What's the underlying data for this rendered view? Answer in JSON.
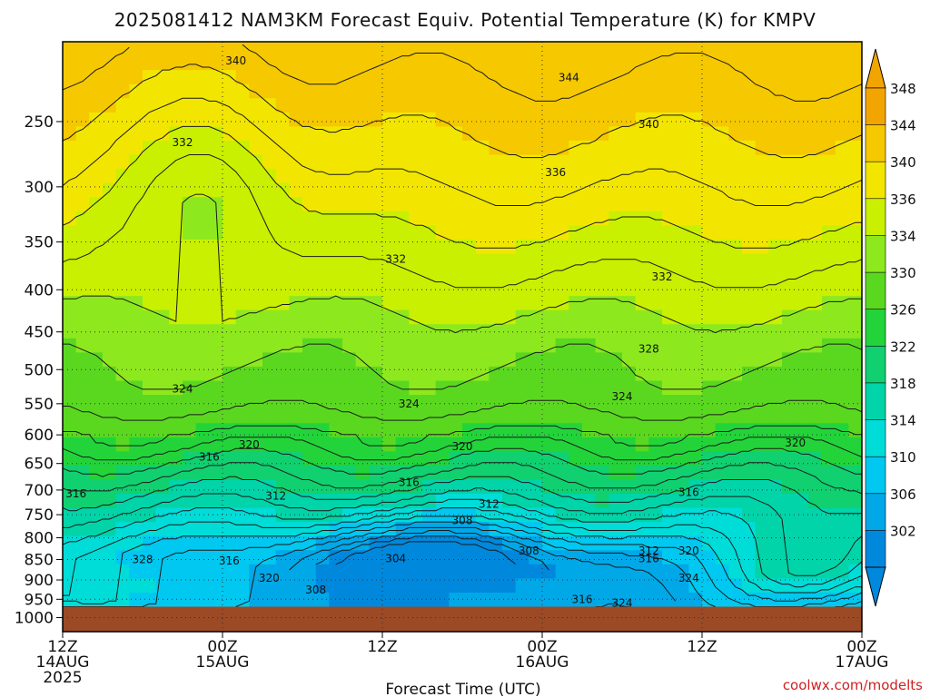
{
  "title": "2025081412 NAM3KM Forecast Equiv. Potential Temperature (K) for KMPV",
  "credit": "coolwx.com/modelts",
  "chart_data": {
    "type": "heatmap",
    "title": "2025081412 NAM3KM Forecast Equiv. Potential Temperature (K) for KMPV",
    "xlabel": "Forecast Time (UTC)",
    "ylabel": "",
    "x_unit": "forecast hour",
    "xlim": [
      0,
      60
    ],
    "x_ticks": [
      {
        "h": 0,
        "lines": [
          "12Z",
          "14AUG",
          "2025"
        ]
      },
      {
        "h": 12,
        "lines": [
          "00Z",
          "15AUG"
        ]
      },
      {
        "h": 24,
        "lines": [
          "12Z"
        ]
      },
      {
        "h": 36,
        "lines": [
          "00Z",
          "16AUG"
        ]
      },
      {
        "h": 48,
        "lines": [
          "12Z"
        ]
      },
      {
        "h": 60,
        "lines": [
          "00Z",
          "17AUG"
        ]
      }
    ],
    "y_unit": "pressure (hPa)",
    "y_scale": "log",
    "ylim": [
      1040,
      200
    ],
    "y_ticks": [
      1000,
      950,
      900,
      850,
      800,
      750,
      700,
      650,
      600,
      550,
      500,
      450,
      400,
      350,
      300,
      250
    ],
    "grid": true,
    "ground_below_hPa": 970,
    "colorbar": {
      "levels": [
        348,
        344,
        340,
        336,
        334,
        330,
        326,
        322,
        318,
        314,
        310,
        306,
        302
      ],
      "colors": [
        "#f2a500",
        "#f5c800",
        "#f2e600",
        "#c8f000",
        "#8ee81e",
        "#5ad820",
        "#22d43a",
        "#10d070",
        "#00d4a8",
        "#00dcd8",
        "#00c8f0",
        "#00a8e8",
        "#0088dc"
      ]
    },
    "contour_labels": [
      {
        "text": "340",
        "h": 13.0,
        "p": 211
      },
      {
        "text": "344",
        "h": 38.0,
        "p": 221
      },
      {
        "text": "340",
        "h": 44.0,
        "p": 252
      },
      {
        "text": "332",
        "h": 9.0,
        "p": 265
      },
      {
        "text": "336",
        "h": 37.0,
        "p": 288
      },
      {
        "text": "332",
        "h": 25.0,
        "p": 367
      },
      {
        "text": "332",
        "h": 45.0,
        "p": 386
      },
      {
        "text": "328",
        "h": 44.0,
        "p": 472
      },
      {
        "text": "324",
        "h": 9.0,
        "p": 528
      },
      {
        "text": "324",
        "h": 26.0,
        "p": 550
      },
      {
        "text": "324",
        "h": 42.0,
        "p": 539
      },
      {
        "text": "320",
        "h": 14.0,
        "p": 617
      },
      {
        "text": "320",
        "h": 30.0,
        "p": 620
      },
      {
        "text": "320",
        "h": 55.0,
        "p": 614
      },
      {
        "text": "316",
        "h": 11.0,
        "p": 638
      },
      {
        "text": "316",
        "h": 26.0,
        "p": 685
      },
      {
        "text": "316",
        "h": 47.0,
        "p": 705
      },
      {
        "text": "316",
        "h": 1.0,
        "p": 707
      },
      {
        "text": "312",
        "h": 16.0,
        "p": 712
      },
      {
        "text": "312",
        "h": 32.0,
        "p": 728
      },
      {
        "text": "308",
        "h": 30.0,
        "p": 762
      },
      {
        "text": "304",
        "h": 25.0,
        "p": 848
      },
      {
        "text": "308",
        "h": 35.0,
        "p": 830
      },
      {
        "text": "312",
        "h": 44.0,
        "p": 830
      },
      {
        "text": "316",
        "h": 44.0,
        "p": 848
      },
      {
        "text": "320",
        "h": 47.0,
        "p": 830
      },
      {
        "text": "328",
        "h": 6.0,
        "p": 850
      },
      {
        "text": "316",
        "h": 12.5,
        "p": 853
      },
      {
        "text": "320",
        "h": 15.5,
        "p": 895
      },
      {
        "text": "308",
        "h": 19.0,
        "p": 925
      },
      {
        "text": "324",
        "h": 47.0,
        "p": 895
      },
      {
        "text": "316",
        "h": 39.0,
        "p": 950
      },
      {
        "text": "324",
        "h": 42.0,
        "p": 960
      }
    ]
  }
}
